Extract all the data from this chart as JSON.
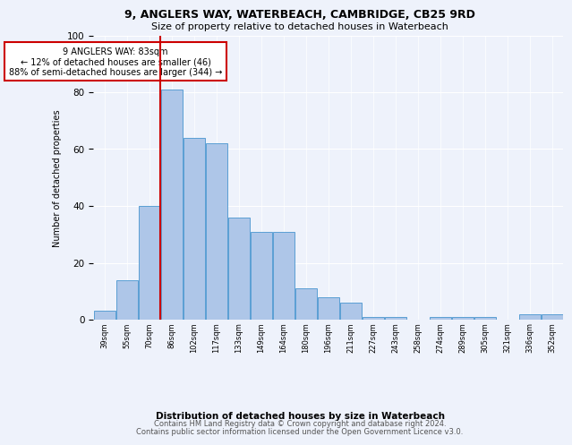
{
  "title1": "9, ANGLERS WAY, WATERBEACH, CAMBRIDGE, CB25 9RD",
  "title2": "Size of property relative to detached houses in Waterbeach",
  "xlabel": "Distribution of detached houses by size in Waterbeach",
  "ylabel": "Number of detached properties",
  "categories": [
    "39sqm",
    "55sqm",
    "70sqm",
    "86sqm",
    "102sqm",
    "117sqm",
    "133sqm",
    "149sqm",
    "164sqm",
    "180sqm",
    "196sqm",
    "211sqm",
    "227sqm",
    "243sqm",
    "258sqm",
    "274sqm",
    "289sqm",
    "305sqm",
    "321sqm",
    "336sqm",
    "352sqm"
  ],
  "values": [
    3,
    14,
    40,
    81,
    64,
    62,
    36,
    31,
    31,
    11,
    8,
    6,
    1,
    1,
    0,
    1,
    1,
    1,
    0,
    2,
    2
  ],
  "bar_color": "#aec6e8",
  "bar_edge_color": "#5a9fd4",
  "vline_x": 2.5,
  "vline_color": "#cc0000",
  "annotation_text": "9 ANGLERS WAY: 83sqm\n← 12% of detached houses are smaller (46)\n88% of semi-detached houses are larger (344) →",
  "annotation_box_color": "#ffffff",
  "annotation_box_edge_color": "#cc0000",
  "ylim": [
    0,
    100
  ],
  "background_color": "#eef2fb",
  "grid_color": "#ffffff",
  "footer1": "Contains HM Land Registry data © Crown copyright and database right 2024.",
  "footer2": "Contains public sector information licensed under the Open Government Licence v3.0."
}
